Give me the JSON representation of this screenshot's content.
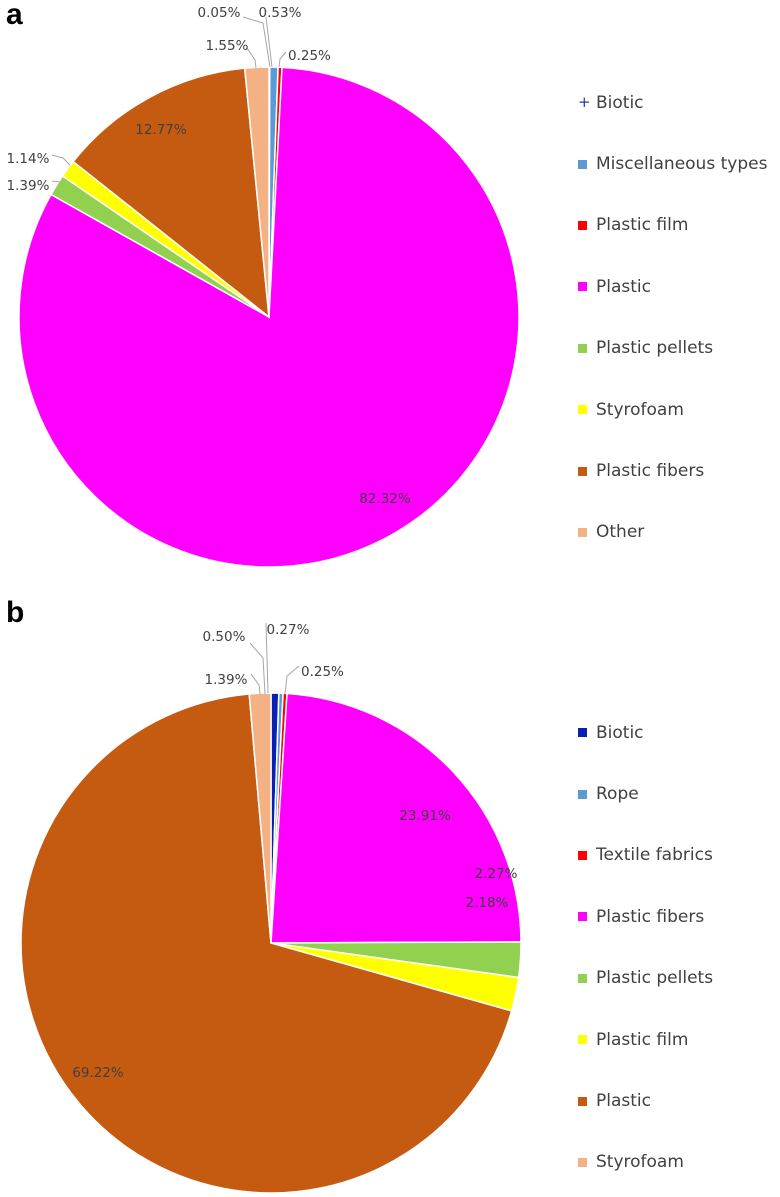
{
  "chart_data": [
    {
      "type": "pie",
      "panel_label": "a",
      "slices": [
        {
          "label": "Biotic",
          "value": 0.05,
          "value_label": "0.05%",
          "color": "#1f3ea8",
          "marker": "plus"
        },
        {
          "label": "Miscellaneous types",
          "value": 0.53,
          "value_label": "0.53%",
          "color": "#5b9bd5"
        },
        {
          "label": "Plastic film",
          "value": 0.25,
          "value_label": "0.25%",
          "color": "#ff0000"
        },
        {
          "label": "Plastic",
          "value": 82.32,
          "value_label": "82.32%",
          "color": "#ff00ff"
        },
        {
          "label": "Plastic pellets",
          "value": 1.39,
          "value_label": "1.39%",
          "color": "#92d050"
        },
        {
          "label": "Styrofoam",
          "value": 1.14,
          "value_label": "1.14%",
          "color": "#ffff00"
        },
        {
          "label": "Plastic fibers",
          "value": 12.77,
          "value_label": "12.77%",
          "color": "#c55a11"
        },
        {
          "label": "Other",
          "value": 1.55,
          "value_label": "1.55%",
          "color": "#f4b183"
        }
      ],
      "legend_position": "right"
    },
    {
      "type": "pie",
      "panel_label": "b",
      "slices": [
        {
          "label": "Biotic",
          "value": 0.5,
          "value_label": "0.50%",
          "color": "#0a1fb5"
        },
        {
          "label": "Rope",
          "value": 0.27,
          "value_label": "0.27%",
          "color": "#5b9bd5"
        },
        {
          "label": "Textile fabrics",
          "value": 0.25,
          "value_label": "0.25%",
          "color": "#ff0000"
        },
        {
          "label": "Plastic fibers",
          "value": 23.91,
          "value_label": "23.91%",
          "color": "#ff00ff"
        },
        {
          "label": "Plastic pellets",
          "value": 2.27,
          "value_label": "2.27%",
          "color": "#92d050"
        },
        {
          "label": "Plastic film",
          "value": 2.18,
          "value_label": "2.18%",
          "color": "#ffff00"
        },
        {
          "label": "Plastic",
          "value": 69.22,
          "value_label": "69.22%",
          "color": "#c55a11"
        },
        {
          "label": "Styrofoam",
          "value": 1.39,
          "value_label": "1.39%",
          "color": "#f4b183"
        }
      ],
      "legend_position": "right"
    }
  ]
}
